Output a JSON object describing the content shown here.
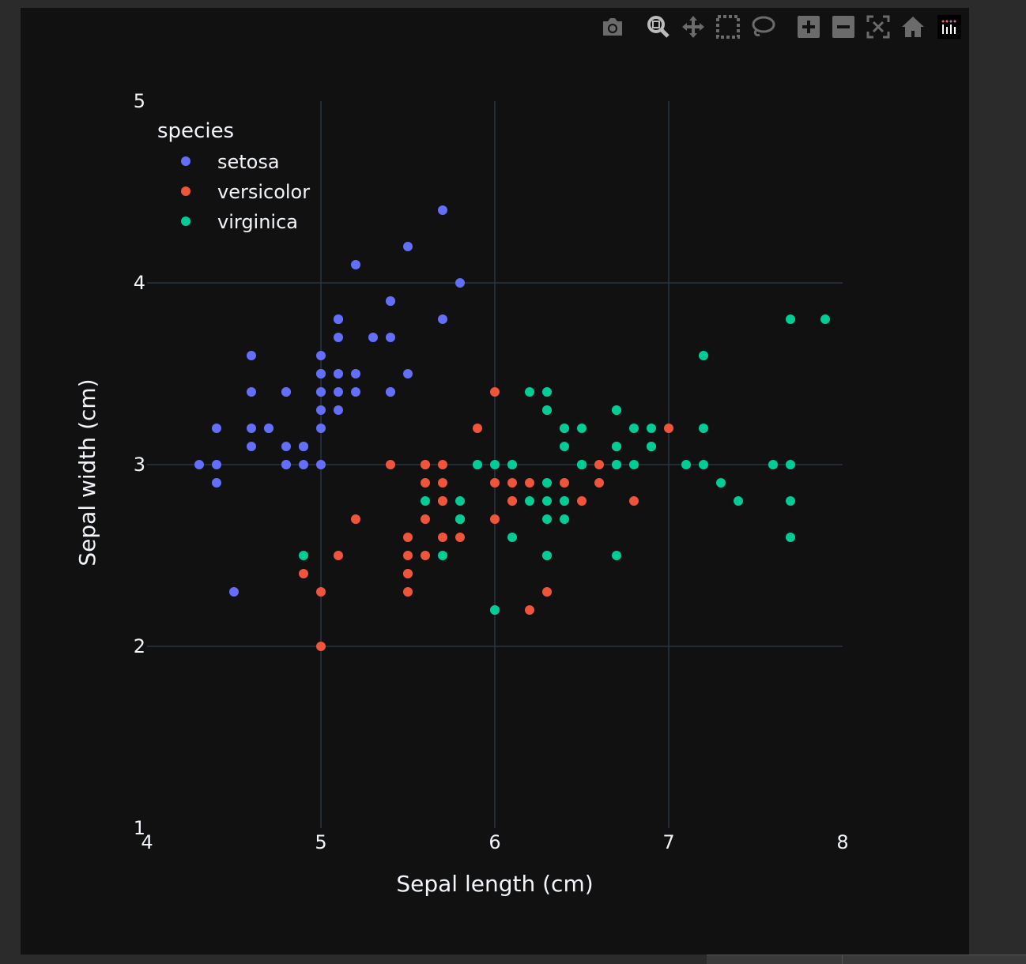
{
  "modebar": {
    "buttons": [
      {
        "icon": "camera-icon"
      },
      {
        "icon": "zoom-icon"
      },
      {
        "icon": "pan-icon"
      },
      {
        "icon": "box-select-icon"
      },
      {
        "icon": "lasso-select-icon"
      },
      {
        "icon": "zoom-in-icon"
      },
      {
        "icon": "zoom-out-icon"
      },
      {
        "icon": "autoscale-icon"
      },
      {
        "icon": "reset-axes-icon"
      }
    ],
    "logo": "plotly-logo-icon"
  },
  "colors": {
    "background": "#111111",
    "grid": "#283442",
    "text": "#f2f5fa",
    "modebar_icon": "#6b6b6b"
  },
  "chart_data": {
    "type": "scatter",
    "title": "",
    "xlabel": "Sepal length (cm)",
    "ylabel": "Sepal width (cm)",
    "xlim": [
      4,
      8
    ],
    "ylim": [
      1,
      5
    ],
    "xticks": [
      4,
      5,
      6,
      7,
      8
    ],
    "yticks": [
      1,
      2,
      3,
      4,
      5
    ],
    "grid": true,
    "legend_title": "species",
    "legend_position": "top-left",
    "series": [
      {
        "name": "setosa",
        "color": "#636efa",
        "points": [
          [
            5.1,
            3.5
          ],
          [
            4.9,
            3.0
          ],
          [
            4.7,
            3.2
          ],
          [
            4.6,
            3.1
          ],
          [
            5.0,
            3.6
          ],
          [
            5.4,
            3.9
          ],
          [
            4.6,
            3.4
          ],
          [
            5.0,
            3.4
          ],
          [
            4.4,
            2.9
          ],
          [
            4.9,
            3.1
          ],
          [
            5.4,
            3.7
          ],
          [
            4.8,
            3.4
          ],
          [
            4.8,
            3.0
          ],
          [
            4.3,
            3.0
          ],
          [
            5.8,
            4.0
          ],
          [
            5.7,
            4.4
          ],
          [
            5.4,
            3.9
          ],
          [
            5.1,
            3.5
          ],
          [
            5.7,
            3.8
          ],
          [
            5.1,
            3.8
          ],
          [
            5.4,
            3.4
          ],
          [
            5.1,
            3.7
          ],
          [
            4.6,
            3.6
          ],
          [
            5.1,
            3.3
          ],
          [
            4.8,
            3.4
          ],
          [
            5.0,
            3.0
          ],
          [
            5.0,
            3.4
          ],
          [
            5.2,
            3.5
          ],
          [
            5.2,
            3.4
          ],
          [
            4.7,
            3.2
          ],
          [
            4.8,
            3.1
          ],
          [
            5.4,
            3.4
          ],
          [
            5.2,
            4.1
          ],
          [
            5.5,
            4.2
          ],
          [
            4.9,
            3.1
          ],
          [
            5.0,
            3.2
          ],
          [
            5.5,
            3.5
          ],
          [
            4.9,
            3.1
          ],
          [
            4.4,
            3.0
          ],
          [
            5.1,
            3.4
          ],
          [
            5.0,
            3.5
          ],
          [
            4.5,
            2.3
          ],
          [
            4.4,
            3.2
          ],
          [
            5.0,
            3.5
          ],
          [
            5.1,
            3.8
          ],
          [
            4.8,
            3.0
          ],
          [
            5.1,
            3.8
          ],
          [
            4.6,
            3.2
          ],
          [
            5.3,
            3.7
          ],
          [
            5.0,
            3.3
          ]
        ]
      },
      {
        "name": "versicolor",
        "color": "#ef553b",
        "points": [
          [
            7.0,
            3.2
          ],
          [
            6.4,
            3.2
          ],
          [
            6.9,
            3.1
          ],
          [
            5.5,
            2.3
          ],
          [
            6.5,
            2.8
          ],
          [
            5.7,
            2.8
          ],
          [
            6.3,
            3.3
          ],
          [
            4.9,
            2.4
          ],
          [
            6.6,
            2.9
          ],
          [
            5.2,
            2.7
          ],
          [
            5.0,
            2.0
          ],
          [
            5.9,
            3.0
          ],
          [
            6.0,
            2.2
          ],
          [
            6.1,
            2.9
          ],
          [
            5.6,
            2.9
          ],
          [
            6.7,
            3.1
          ],
          [
            5.6,
            3.0
          ],
          [
            5.8,
            2.7
          ],
          [
            6.2,
            2.2
          ],
          [
            5.6,
            2.5
          ],
          [
            5.9,
            3.2
          ],
          [
            6.1,
            2.8
          ],
          [
            6.3,
            2.5
          ],
          [
            6.1,
            2.8
          ],
          [
            6.4,
            2.9
          ],
          [
            6.6,
            3.0
          ],
          [
            6.8,
            2.8
          ],
          [
            6.7,
            3.0
          ],
          [
            6.0,
            2.9
          ],
          [
            5.7,
            2.6
          ],
          [
            5.5,
            2.4
          ],
          [
            5.5,
            2.4
          ],
          [
            5.8,
            2.7
          ],
          [
            6.0,
            2.7
          ],
          [
            5.4,
            3.0
          ],
          [
            6.0,
            3.4
          ],
          [
            6.7,
            3.1
          ],
          [
            6.3,
            2.3
          ],
          [
            5.6,
            3.0
          ],
          [
            5.5,
            2.5
          ],
          [
            5.5,
            2.6
          ],
          [
            6.1,
            3.0
          ],
          [
            5.8,
            2.6
          ],
          [
            5.0,
            2.3
          ],
          [
            5.6,
            2.7
          ],
          [
            5.7,
            3.0
          ],
          [
            5.7,
            2.9
          ],
          [
            6.2,
            2.9
          ],
          [
            5.1,
            2.5
          ],
          [
            5.7,
            2.8
          ]
        ]
      },
      {
        "name": "virginica",
        "color": "#00cc96",
        "points": [
          [
            6.3,
            3.3
          ],
          [
            5.8,
            2.7
          ],
          [
            7.1,
            3.0
          ],
          [
            6.3,
            2.9
          ],
          [
            6.5,
            3.0
          ],
          [
            7.6,
            3.0
          ],
          [
            4.9,
            2.5
          ],
          [
            7.3,
            2.9
          ],
          [
            6.7,
            2.5
          ],
          [
            7.2,
            3.6
          ],
          [
            6.5,
            3.2
          ],
          [
            6.4,
            2.7
          ],
          [
            6.8,
            3.0
          ],
          [
            5.7,
            2.5
          ],
          [
            5.8,
            2.8
          ],
          [
            6.4,
            3.2
          ],
          [
            6.5,
            3.0
          ],
          [
            7.7,
            3.8
          ],
          [
            7.7,
            2.6
          ],
          [
            6.0,
            2.2
          ],
          [
            6.9,
            3.2
          ],
          [
            5.6,
            2.8
          ],
          [
            7.7,
            2.8
          ],
          [
            6.3,
            2.7
          ],
          [
            6.7,
            3.3
          ],
          [
            7.2,
            3.2
          ],
          [
            6.2,
            2.8
          ],
          [
            6.1,
            3.0
          ],
          [
            6.4,
            2.8
          ],
          [
            7.2,
            3.0
          ],
          [
            7.4,
            2.8
          ],
          [
            7.9,
            3.8
          ],
          [
            6.4,
            2.8
          ],
          [
            6.3,
            2.8
          ],
          [
            6.1,
            2.6
          ],
          [
            7.7,
            3.0
          ],
          [
            6.3,
            3.4
          ],
          [
            6.4,
            3.1
          ],
          [
            6.0,
            3.0
          ],
          [
            6.9,
            3.1
          ],
          [
            6.7,
            3.1
          ],
          [
            6.9,
            3.1
          ],
          [
            5.8,
            2.7
          ],
          [
            6.8,
            3.2
          ],
          [
            6.7,
            3.3
          ],
          [
            6.7,
            3.0
          ],
          [
            6.3,
            2.5
          ],
          [
            6.5,
            3.0
          ],
          [
            6.2,
            3.4
          ],
          [
            5.9,
            3.0
          ]
        ]
      }
    ]
  }
}
